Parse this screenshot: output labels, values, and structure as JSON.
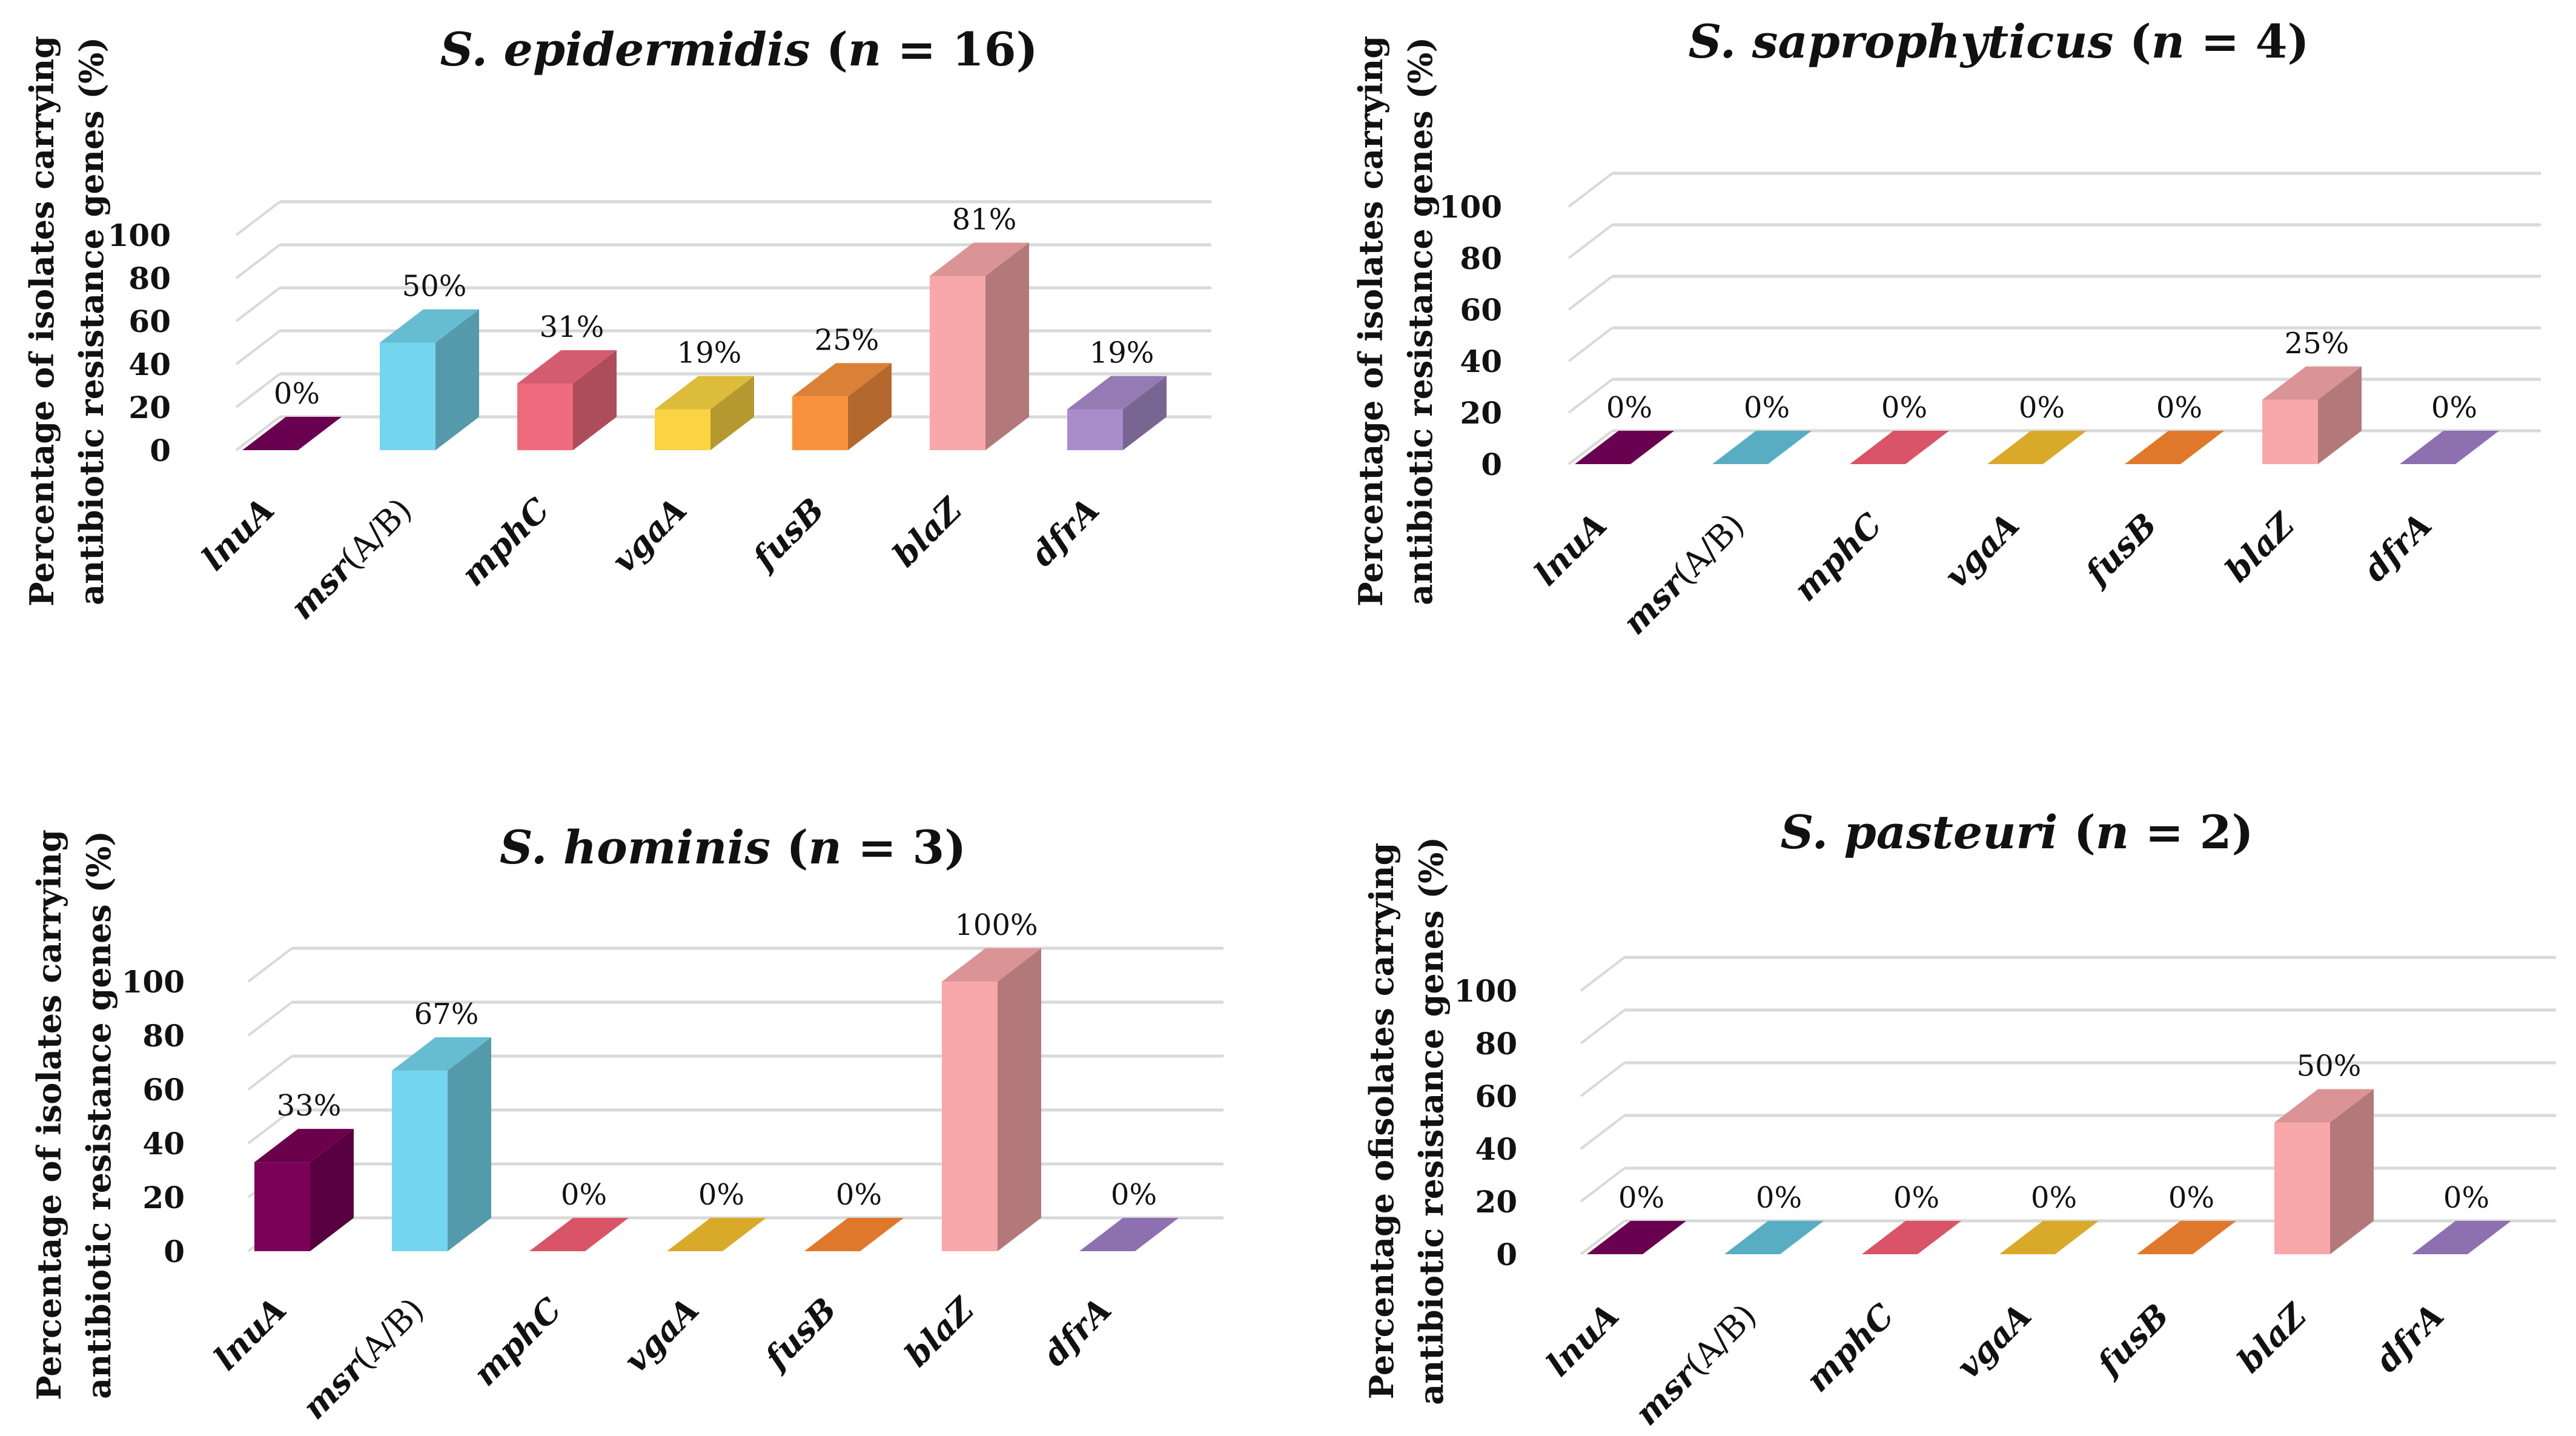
{
  "chart_data": [
    {
      "type": "bar",
      "title_species": "S. epidermidis",
      "title_n": "16",
      "ylabel_line1": "Percentage of isolates carrying",
      "ylabel_line2": "antibiotic resistance genes (%)",
      "yticks": [
        "0",
        "20",
        "40",
        "60",
        "80",
        "100"
      ],
      "ylim": [
        0,
        100
      ],
      "categories": [
        "lnuA",
        "msr(A/B)",
        "mphC",
        "vgaA",
        "fusB",
        "blaZ",
        "dfrA"
      ],
      "values": [
        0,
        50,
        31,
        19,
        25,
        81,
        19
      ],
      "labels": [
        "0%",
        "50%",
        "31%",
        "19%",
        "25%",
        "81%",
        "19%"
      ]
    },
    {
      "type": "bar",
      "title_species": "S. saprophyticus",
      "title_n": "4",
      "ylabel_line1": "Percentage of isolates carrying",
      "ylabel_line2": "antibiotic resistance genes (%)",
      "yticks": [
        "0",
        "20",
        "40",
        "60",
        "80",
        "100"
      ],
      "ylim": [
        0,
        100
      ],
      "categories": [
        "lnuA",
        "msr(A/B)",
        "mphC",
        "vgaA",
        "fusB",
        "blaZ",
        "dfrA"
      ],
      "values": [
        0,
        0,
        0,
        0,
        0,
        25,
        0
      ],
      "labels": [
        "0%",
        "0%",
        "0%",
        "0%",
        "0%",
        "25%",
        "0%"
      ]
    },
    {
      "type": "bar",
      "title_species": "S. hominis",
      "title_n": "3",
      "ylabel_line1": "Percentage of isolates carrying",
      "ylabel_line2": "antibiotic resistance genes (%)",
      "yticks": [
        "0",
        "20",
        "40",
        "60",
        "80",
        "100"
      ],
      "ylim": [
        0,
        100
      ],
      "categories": [
        "lnuA",
        "msr(A/B)",
        "mphC",
        "vgaA",
        "fusB",
        "blaZ",
        "dfrA"
      ],
      "values": [
        33,
        67,
        0,
        0,
        0,
        100,
        0
      ],
      "labels": [
        "33%",
        "67%",
        "0%",
        "0%",
        "0%",
        "100%",
        "0%"
      ]
    },
    {
      "type": "bar",
      "title_species": "S. pasteuri",
      "title_n": "2",
      "ylabel_line1": "Percentage ofisolates carrying",
      "ylabel_line2": "antibiotic resistance genes (%)",
      "yticks": [
        "0",
        "20",
        "40",
        "60",
        "80",
        "100"
      ],
      "ylim": [
        0,
        100
      ],
      "categories": [
        "lnuA",
        "msr(A/B)",
        "mphC",
        "vgaA",
        "fusB",
        "blaZ",
        "dfrA"
      ],
      "values": [
        0,
        0,
        0,
        0,
        0,
        50,
        0
      ],
      "labels": [
        "0%",
        "0%",
        "0%",
        "0%",
        "0%",
        "50%",
        "0%"
      ]
    }
  ],
  "series_colors": [
    "#7a0058",
    "#74d6ee",
    "#f06a7e",
    "#fbd443",
    "#f8923f",
    "#f8a8aa",
    "#a88ccb"
  ],
  "zero_colors": [
    "#6a0050",
    "#58adc2",
    "#d95466",
    "#d9a92a",
    "#e0782c",
    "#e08a8c",
    "#8d70b0"
  ]
}
